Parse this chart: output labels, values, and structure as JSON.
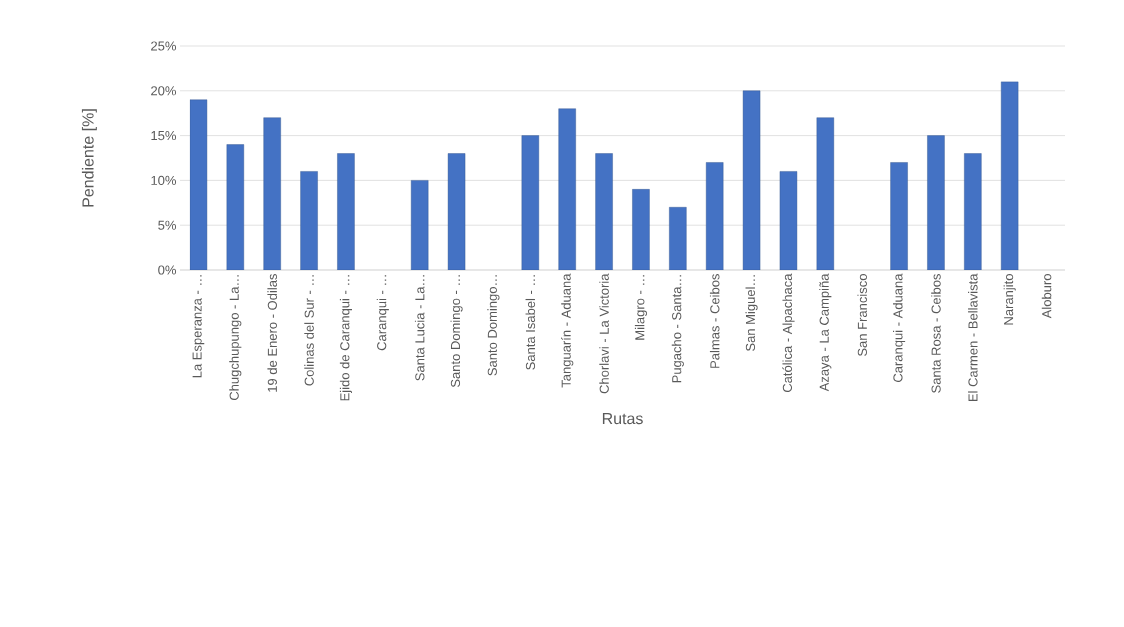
{
  "chart_data": {
    "type": "bar",
    "xlabel": "Rutas",
    "ylabel": "Pendiente [%]",
    "categories": [
      "La Esperanza - …",
      "Chugchupungo - La…",
      "19 de Enero - Odilas",
      "Colinas del Sur - …",
      "Ejido de Caranqui - …",
      "Caranqui - …",
      "Santa Lucia - La…",
      "Santo Domingo - …",
      "Santo Domingo…",
      "Santa Isabel - …",
      "Tanguarín - Aduana",
      "Chorlavi - La Victoria",
      "Milagro - …",
      "Pugacho - Santa…",
      "Palmas - Ceibos",
      "San Miguel…",
      "Católica - Alpachaca",
      "Azaya - La Campiña",
      "San Francisco",
      "Caranqui - Aduana",
      "Santa Rosa - Ceibos",
      "El Carmen - Bellavista",
      "Naranjito",
      "Aloburo"
    ],
    "values": [
      19,
      14,
      17,
      11,
      13,
      null,
      10,
      13,
      null,
      15,
      18,
      13,
      9,
      7,
      12,
      20,
      11,
      17,
      null,
      12,
      15,
      13,
      21,
      null
    ],
    "color": "#4472c4",
    "ylim": [
      0,
      25
    ],
    "yticks": [
      {
        "value": 0,
        "label": "0%"
      },
      {
        "value": 5,
        "label": "5%"
      },
      {
        "value": 10,
        "label": "10%"
      },
      {
        "value": 15,
        "label": "15%"
      },
      {
        "value": 20,
        "label": "20%"
      },
      {
        "value": 25,
        "label": "25%"
      }
    ],
    "grid": "y"
  }
}
